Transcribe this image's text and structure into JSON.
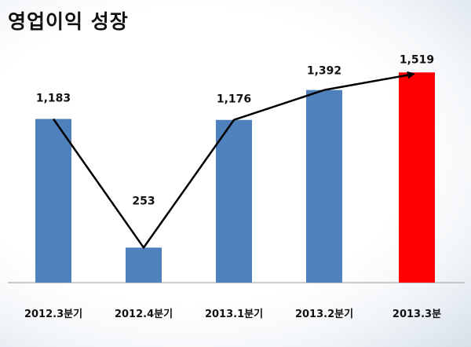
{
  "title": "영업이익 성장",
  "chart_data": {
    "type": "bar",
    "categories": [
      "2012.3분기",
      "2012.4분기",
      "2013.1분기",
      "2013.2분기",
      "2013.3분"
    ],
    "values": [
      1183,
      253,
      1176,
      1392,
      1519
    ],
    "value_labels": [
      "1,183",
      "253",
      "1,176",
      "1,392",
      "1,519"
    ],
    "bar_colors": [
      "#4f81bd",
      "#4f81bd",
      "#4f81bd",
      "#4f81bd",
      "#ff0000"
    ],
    "trend_line": true,
    "trend_arrow": true,
    "ylim": [
      0,
      1600
    ],
    "grid": false,
    "xlabel": "",
    "ylabel": ""
  }
}
